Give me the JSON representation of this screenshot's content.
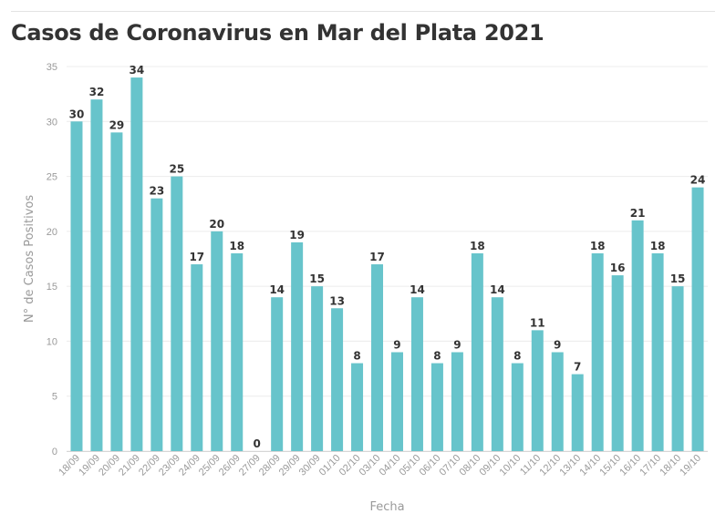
{
  "chart_data": {
    "type": "bar",
    "title": "Casos de Coronavirus en Mar del Plata 2021",
    "xlabel": "Fecha",
    "ylabel": "N° de Casos Positivos",
    "ylim": [
      0,
      35
    ],
    "yticks": [
      0,
      5,
      10,
      15,
      20,
      25,
      30,
      35
    ],
    "grid": true,
    "bar_color": "#67c4cb",
    "categories": [
      "18/09",
      "19/09",
      "20/09",
      "21/09",
      "22/09",
      "23/09",
      "24/09",
      "25/09",
      "26/09",
      "27/09",
      "28/09",
      "29/09",
      "30/09",
      "01/10",
      "02/10",
      "03/10",
      "04/10",
      "05/10",
      "06/10",
      "07/10",
      "08/10",
      "09/10",
      "10/10",
      "11/10",
      "12/10",
      "13/10",
      "14/10",
      "15/10",
      "16/10",
      "17/10",
      "18/10",
      "19/10"
    ],
    "values": [
      30,
      32,
      29,
      34,
      23,
      25,
      17,
      20,
      18,
      0,
      14,
      19,
      15,
      13,
      8,
      17,
      9,
      14,
      8,
      9,
      18,
      14,
      8,
      11,
      9,
      7,
      18,
      16,
      21,
      18,
      15,
      24
    ]
  }
}
